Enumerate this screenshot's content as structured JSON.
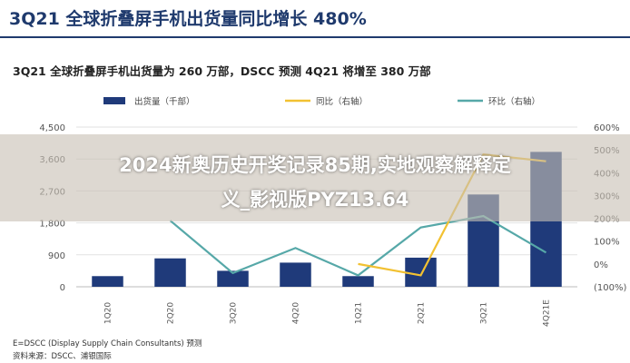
{
  "header": {
    "title": "3Q21 全球折叠屏手机出货量同比增长 480%"
  },
  "subtitle": "3Q21 全球折叠屏手机出货量为 260 万部，DSCC 预测 4Q21 将增至 380 万部",
  "colors": {
    "bar": "#1f3a7a",
    "yoy": "#f2c132",
    "qoq": "#56a8a8",
    "header": "#1f3a6d"
  },
  "chart_data": {
    "type": "bar",
    "categories": [
      "1Q20",
      "2Q20",
      "3Q20",
      "4Q20",
      "1Q21",
      "2Q21",
      "3Q21",
      "4Q21E"
    ],
    "series": [
      {
        "name": "出货量（千部）",
        "type": "bar",
        "axis": "left",
        "values": [
          300,
          800,
          450,
          680,
          300,
          820,
          2600,
          3800
        ]
      },
      {
        "name": "同比（右轴）",
        "type": "line",
        "axis": "right",
        "values": [
          null,
          null,
          null,
          null,
          0,
          -50,
          480,
          450
        ]
      },
      {
        "name": "环比（右轴）",
        "type": "line",
        "axis": "right",
        "values": [
          null,
          190,
          -40,
          70,
          -50,
          160,
          210,
          50
        ]
      }
    ],
    "left_axis": {
      "ticks": [
        "4,500",
        "3,600",
        "2,700",
        "1,800",
        "900",
        "0"
      ],
      "range": [
        0,
        4500
      ]
    },
    "right_axis": {
      "ticks": [
        "600%",
        "500%",
        "400%",
        "300%",
        "200%",
        "100%",
        "0%",
        "(100%)"
      ],
      "range": [
        -100,
        600
      ]
    },
    "legend_position": "top",
    "grid": true
  },
  "footnotes": [
    "E=DSCC (Display Supply Chain Consultants) 预测",
    "资料来源：DSCC、浦银国际"
  ],
  "overlay": {
    "line1": "2024新奥历史开奖记录85期,实地观察解释定",
    "line2": "义_影视版PYZ13.64"
  }
}
